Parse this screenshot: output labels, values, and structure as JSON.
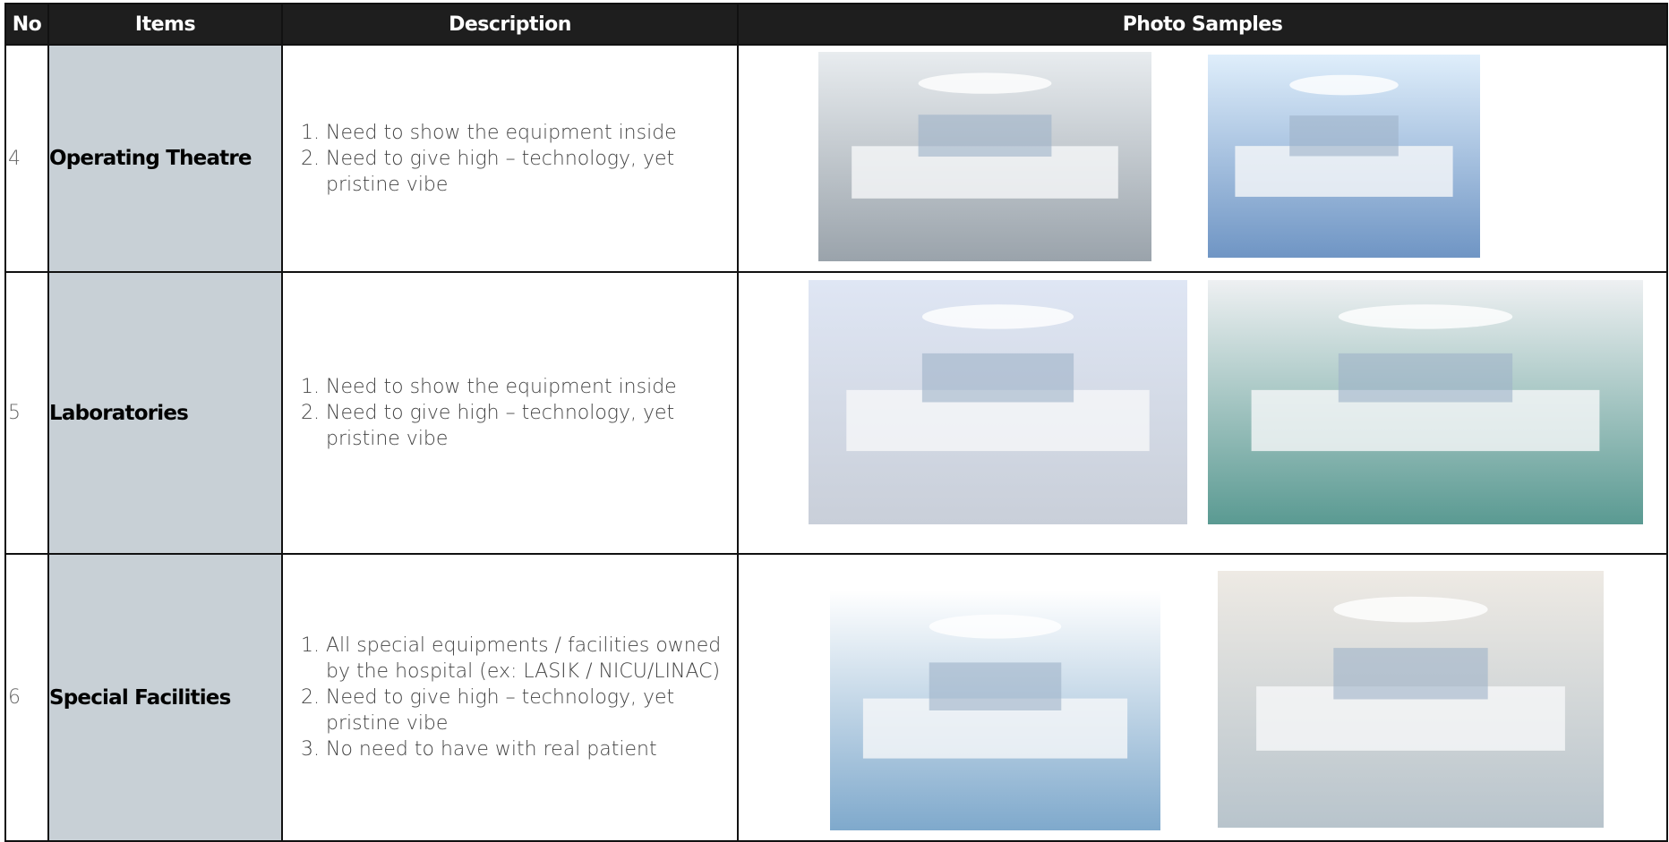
{
  "table": {
    "header": [
      "No",
      "Items",
      "Description",
      "Photo Samples"
    ],
    "rows": [
      {
        "no": "4",
        "item": "Operating Theatre",
        "description": [
          "Need to show the equipment inside",
          "Need to give high – technology, yet pristine vibe"
        ]
      },
      {
        "no": "5",
        "item": "Laboratories",
        "description": [
          "Need to show the equipment inside",
          "Need to give high – technology, yet pristine vibe"
        ]
      },
      {
        "no": "6",
        "item": "Special Facilities",
        "description": [
          "All special equipments / facilities owned by the hospital (ex: LASIK / NICU/LINAC)",
          "Need to give high – technology, yet pristine vibe",
          "No need to have with real patient"
        ]
      }
    ]
  }
}
